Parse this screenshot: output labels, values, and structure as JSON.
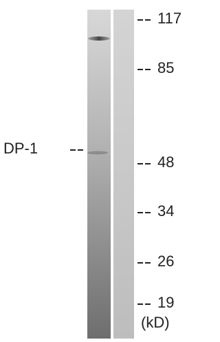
{
  "band_label": "DP-1",
  "markers": [
    "117",
    "85",
    "48",
    "34",
    "26",
    "19"
  ],
  "unit": "(kD)"
}
